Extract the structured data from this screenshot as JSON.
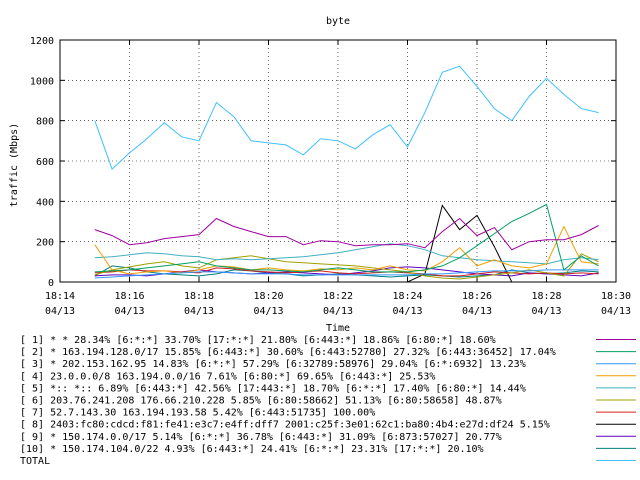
{
  "chart_data": {
    "type": "line",
    "title": "byte",
    "xlabel": "Time",
    "ylabel": "traffic (Mbps)",
    "ylim": [
      0,
      1200
    ],
    "yticks": [
      "0",
      "200",
      "400",
      "600",
      "800",
      "1000",
      "1200"
    ],
    "xticks": [
      {
        "time": "18:14",
        "date": "04/13"
      },
      {
        "time": "18:16",
        "date": "04/13"
      },
      {
        "time": "18:18",
        "date": "04/13"
      },
      {
        "time": "18:20",
        "date": "04/13"
      },
      {
        "time": "18:22",
        "date": "04/13"
      },
      {
        "time": "18:24",
        "date": "04/13"
      },
      {
        "time": "18:26",
        "date": "04/13"
      },
      {
        "time": "18:28",
        "date": "04/13"
      },
      {
        "time": "18:30",
        "date": "04/13"
      }
    ],
    "x": [
      "18:15:00",
      "18:15:30",
      "18:16:00",
      "18:16:30",
      "18:17:00",
      "18:17:30",
      "18:18:00",
      "18:18:30",
      "18:19:00",
      "18:19:30",
      "18:20:00",
      "18:20:30",
      "18:21:00",
      "18:21:30",
      "18:22:00",
      "18:22:30",
      "18:23:00",
      "18:23:30",
      "18:24:00",
      "18:24:30",
      "18:25:00",
      "18:25:30",
      "18:26:00",
      "18:26:30",
      "18:27:00",
      "18:27:30",
      "18:28:00",
      "18:28:30",
      "18:29:00",
      "18:29:30"
    ],
    "series": [
      {
        "name": "[ 1] * * 28.34%  [6:*:*] 33.70% [17:*:*] 21.80% [6:443:*] 18.86% [6:80:*] 18.60%",
        "color": "#a000a0",
        "values": [
          260,
          230,
          185,
          195,
          215,
          225,
          235,
          315,
          275,
          250,
          225,
          225,
          185,
          205,
          200,
          180,
          185,
          185,
          190,
          170,
          250,
          315,
          230,
          270,
          160,
          200,
          210,
          210,
          235,
          280
        ]
      },
      {
        "name": "[ 2] * 163.194.128.0/17 15.85%  [6:443:*] 30.60% [6:443:52780] 27.32% [6:443:36452] 17.04%",
        "color": "#00a060",
        "values": [
          50,
          55,
          60,
          70,
          80,
          90,
          100,
          80,
          70,
          60,
          60,
          55,
          50,
          60,
          70,
          60,
          50,
          50,
          50,
          60,
          80,
          120,
          180,
          240,
          300,
          340,
          385,
          60,
          130,
          80
        ]
      },
      {
        "name": "[ 3] * 202.153.162.95 14.83%  [6:*:*] 57.29% [6:32789:58976] 29.04% [6:*:6932] 13.23%",
        "color": "#3399ff",
        "values": [
          20,
          25,
          30,
          35,
          40,
          45,
          50,
          50,
          45,
          40,
          40,
          40,
          35,
          35,
          35,
          35,
          35,
          35,
          35,
          40,
          40,
          45,
          50,
          55,
          55,
          55,
          60,
          60,
          60,
          60
        ]
      },
      {
        "name": "[ 4] 23.0.0.0/8 163.194.0.0/16 7.61%  [6:80:*] 69.65% [6:443:*] 25.53%",
        "color": "#f0a000",
        "values": [
          185,
          60,
          40,
          50,
          55,
          45,
          60,
          80,
          75,
          60,
          70,
          60,
          55,
          65,
          60,
          70,
          60,
          80,
          60,
          55,
          100,
          170,
          80,
          110,
          80,
          70,
          90,
          275,
          100,
          90
        ]
      },
      {
        "name": "[ 5] *:: *:: 6.89%  [6:443:*] 42.56% [17:443:*] 18.70% [6:*:*] 17.40% [6:80:*] 14.44%",
        "color": "#40b0c0",
        "values": [
          120,
          125,
          135,
          145,
          140,
          130,
          125,
          110,
          115,
          110,
          115,
          120,
          125,
          135,
          145,
          160,
          175,
          190,
          180,
          160,
          130,
          120,
          110,
          105,
          100,
          95,
          90,
          110,
          120,
          110
        ]
      },
      {
        "name": "[ 6] 203.76.241.208 176.66.210.228 5.85%  [6:80:58662] 51.13% [6:80:58658] 48.87%",
        "color": "#a0a000",
        "values": [
          35,
          60,
          75,
          90,
          100,
          80,
          70,
          110,
          120,
          130,
          115,
          100,
          95,
          90,
          85,
          80,
          70,
          60,
          50,
          30,
          20,
          15,
          25,
          35,
          45,
          60,
          45,
          30,
          140,
          100
        ]
      },
      {
        "name": "[ 7] 52.7.143.30 163.194.193.58 5.42%  [6:443:51735] 100.00%",
        "color": "#d02020",
        "values": [
          45,
          50,
          60,
          55,
          55,
          50,
          45,
          70,
          65,
          55,
          50,
          45,
          50,
          55,
          45,
          40,
          45,
          50,
          45,
          40,
          30,
          30,
          40,
          50,
          45,
          40,
          45,
          40,
          45,
          40
        ]
      },
      {
        "name": "[ 8] 2403:fc80:cdcd:f81:fe41:e3c7:e4ff:dff7 2001:c25f:3e01:62c1:ba80:4b4:e27d:df24 5.15%",
        "color": "#000000",
        "values": [
          0,
          0,
          0,
          0,
          0,
          0,
          0,
          0,
          0,
          0,
          0,
          0,
          0,
          0,
          0,
          0,
          0,
          0,
          0,
          40,
          380,
          260,
          330,
          175,
          0,
          0,
          0,
          0,
          0,
          0
        ]
      },
      {
        "name": "[ 9] * 150.174.0.0/17 5.14%  [6:*:*] 36.78% [6:443:*] 31.09% [6:873:57027] 20.77%",
        "color": "#6000c0",
        "values": [
          30,
          35,
          35,
          30,
          40,
          50,
          60,
          50,
          45,
          40,
          45,
          50,
          45,
          40,
          35,
          45,
          55,
          70,
          75,
          70,
          60,
          50,
          40,
          35,
          30,
          45,
          40,
          35,
          30,
          45
        ]
      },
      {
        "name": "[10] * 150.174.104.0/22 4.93%  [6:443:*] 24.41% [6:*:*] 23.31% [17:*:*] 20.10%",
        "color": "#008080",
        "values": [
          30,
          80,
          70,
          50,
          40,
          35,
          30,
          40,
          60,
          55,
          45,
          40,
          30,
          35,
          40,
          35,
          30,
          25,
          30,
          35,
          30,
          25,
          30,
          35,
          60,
          45,
          40,
          45,
          55,
          50
        ]
      },
      {
        "name": "TOTAL",
        "color": "#40c0ff",
        "values": [
          800,
          560,
          640,
          710,
          790,
          720,
          700,
          890,
          820,
          700,
          690,
          680,
          630,
          710,
          700,
          660,
          730,
          780,
          670,
          840,
          1040,
          1070,
          970,
          860,
          800,
          920,
          1010,
          930,
          860,
          840
        ]
      }
    ]
  }
}
